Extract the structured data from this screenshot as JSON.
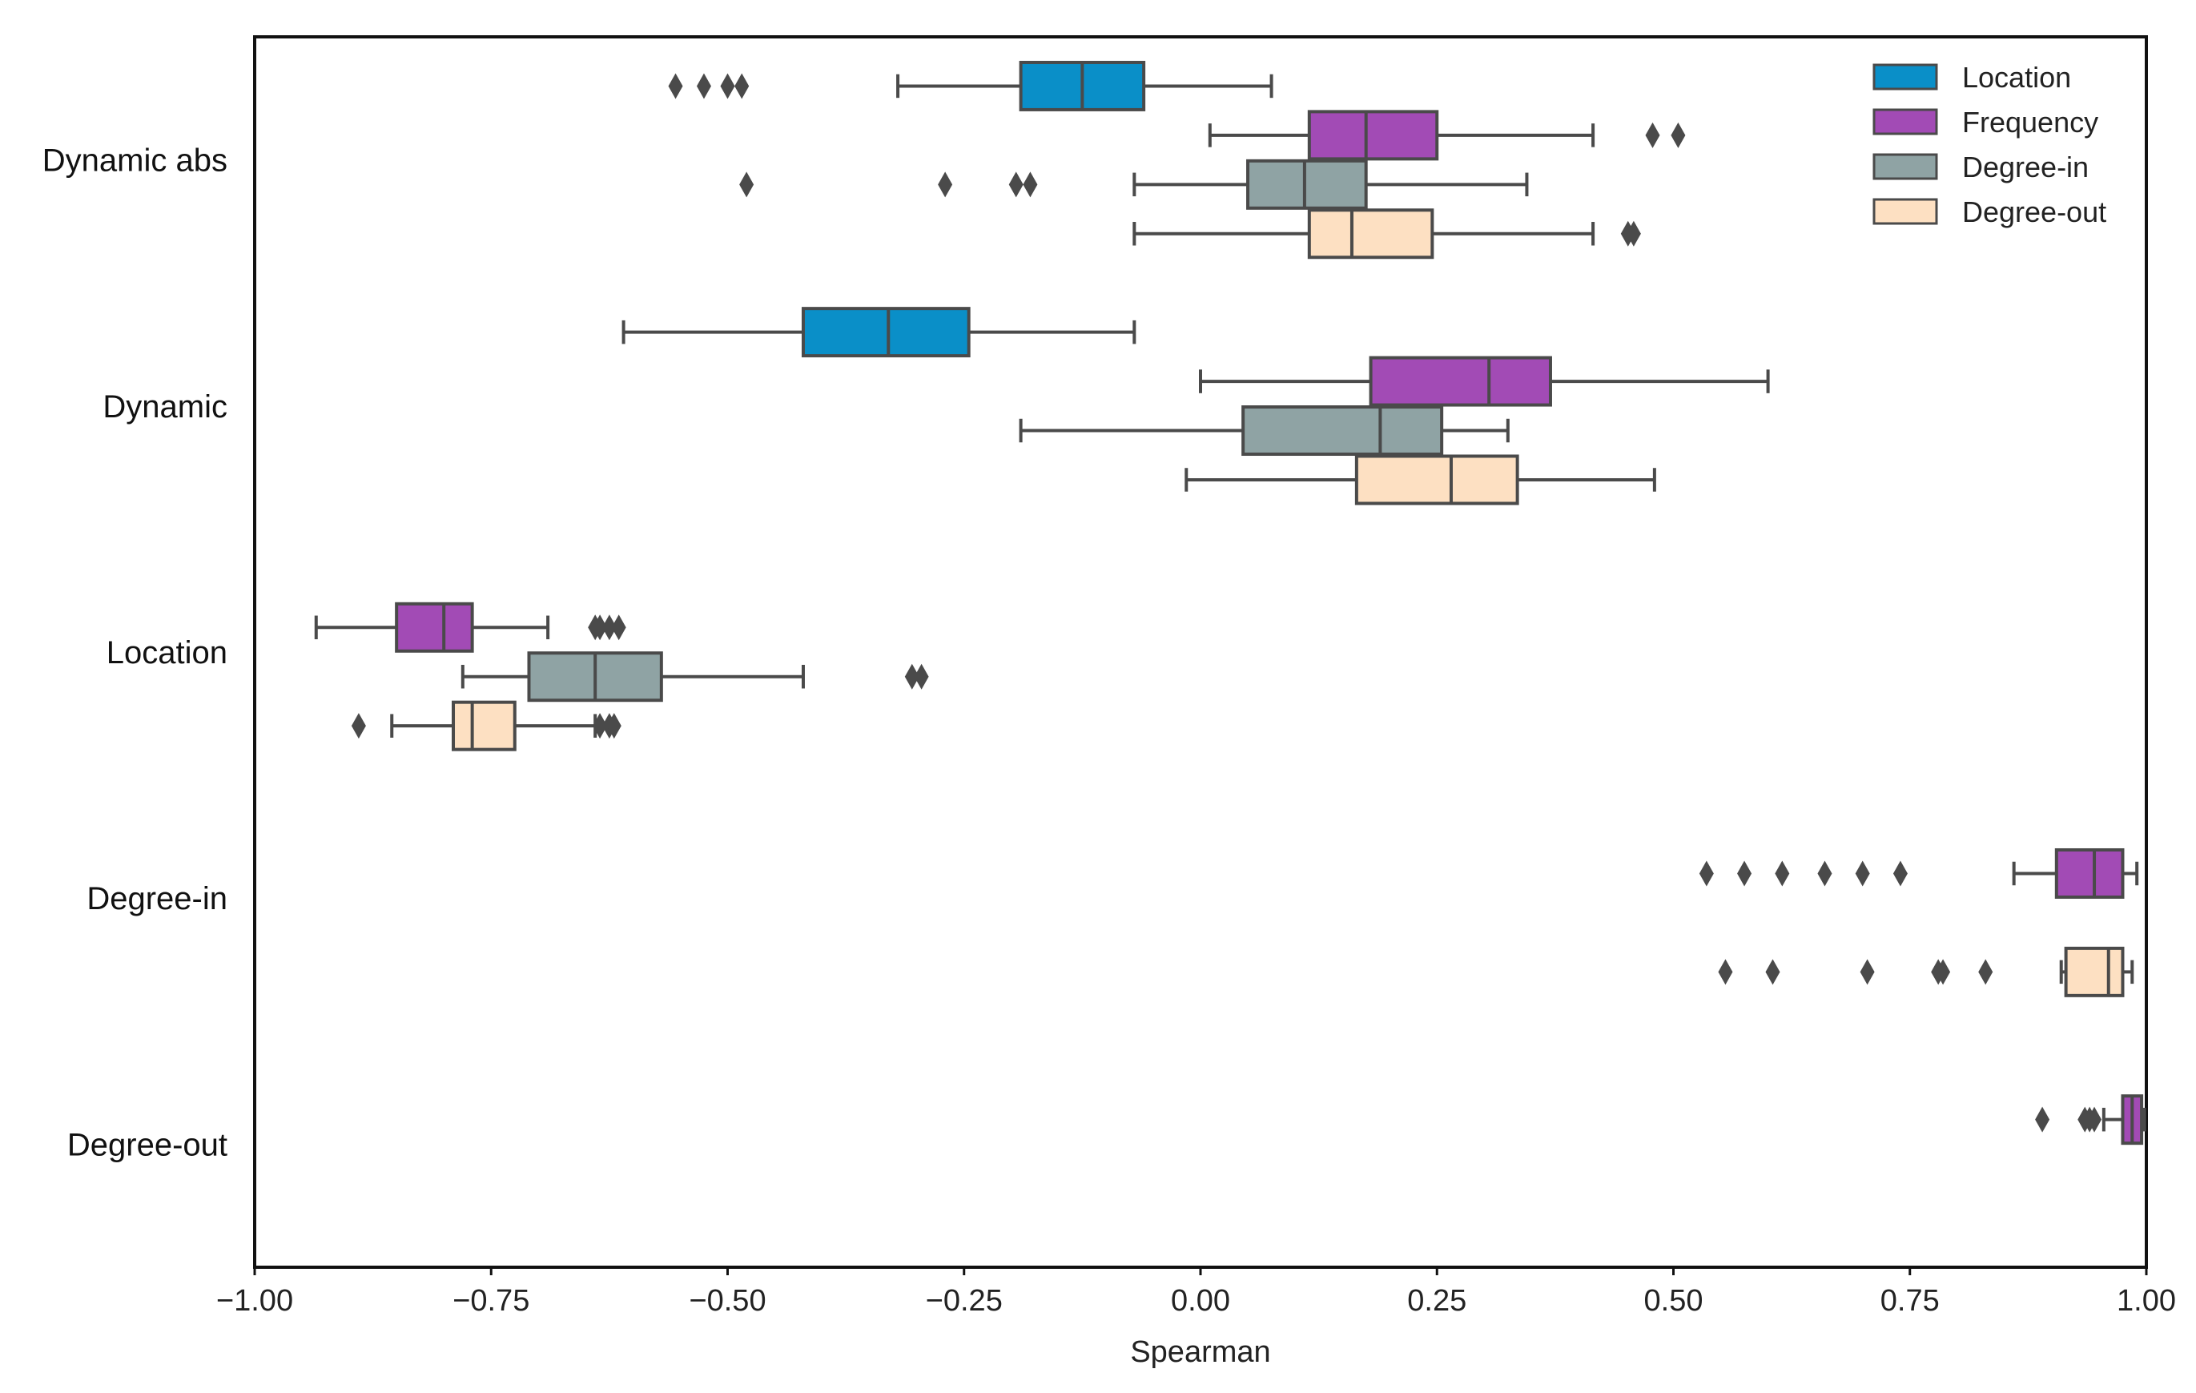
{
  "chart_data": {
    "type": "boxplot",
    "orientation": "horizontal",
    "xlabel": "Spearman",
    "xlim": [
      -1.0,
      1.0
    ],
    "xticks": [
      -1.0,
      -0.75,
      -0.5,
      -0.25,
      0.0,
      0.25,
      0.5,
      0.75,
      1.0
    ],
    "xtick_labels": [
      "−1.00",
      "−0.75",
      "−0.50",
      "−0.25",
      "0.00",
      "0.25",
      "0.50",
      "0.75",
      "1.00"
    ],
    "grid": false,
    "legend_position": "top-right",
    "categories": [
      "Dynamic abs",
      "Dynamic",
      "Location",
      "Degree-in",
      "Degree-out"
    ],
    "hue_order": [
      "Location",
      "Frequency",
      "Degree-in",
      "Degree-out"
    ],
    "colors": {
      "Location": "#0a8fc8",
      "Frequency": "#a24bb5",
      "Degree-in": "#8fa3a4",
      "Degree-out": "#fde0c2",
      "edge": "#4a4a4a"
    },
    "boxes": [
      {
        "category": "Dynamic abs",
        "series": "Location",
        "whislo": -0.32,
        "q1": -0.19,
        "med": -0.125,
        "q3": -0.06,
        "whishi": 0.075,
        "fliers": [
          -0.555,
          -0.525,
          -0.5,
          -0.485
        ]
      },
      {
        "category": "Dynamic abs",
        "series": "Frequency",
        "whislo": 0.01,
        "q1": 0.115,
        "med": 0.175,
        "q3": 0.25,
        "whishi": 0.415,
        "fliers": [
          0.478,
          0.505
        ]
      },
      {
        "category": "Dynamic abs",
        "series": "Degree-in",
        "whislo": -0.07,
        "q1": 0.05,
        "med": 0.11,
        "q3": 0.175,
        "whishi": 0.345,
        "fliers": [
          -0.48,
          -0.27,
          -0.195,
          -0.18
        ]
      },
      {
        "category": "Dynamic abs",
        "series": "Degree-out",
        "whislo": -0.07,
        "q1": 0.115,
        "med": 0.16,
        "q3": 0.245,
        "whishi": 0.415,
        "fliers": [
          0.452,
          0.458
        ]
      },
      {
        "category": "Dynamic",
        "series": "Location",
        "whislo": -0.61,
        "q1": -0.42,
        "med": -0.33,
        "q3": -0.245,
        "whishi": -0.07,
        "fliers": []
      },
      {
        "category": "Dynamic",
        "series": "Frequency",
        "whislo": 0.0,
        "q1": 0.18,
        "med": 0.305,
        "q3": 0.37,
        "whishi": 0.6,
        "fliers": []
      },
      {
        "category": "Dynamic",
        "series": "Degree-in",
        "whislo": -0.19,
        "q1": 0.045,
        "med": 0.19,
        "q3": 0.255,
        "whishi": 0.325,
        "fliers": []
      },
      {
        "category": "Dynamic",
        "series": "Degree-out",
        "whislo": -0.015,
        "q1": 0.165,
        "med": 0.265,
        "q3": 0.335,
        "whishi": 0.48,
        "fliers": []
      },
      {
        "category": "Location",
        "series": "Frequency",
        "whislo": -0.935,
        "q1": -0.85,
        "med": -0.8,
        "q3": -0.77,
        "whishi": -0.69,
        "fliers": [
          -0.64,
          -0.635,
          -0.625,
          -0.615
        ]
      },
      {
        "category": "Location",
        "series": "Degree-in",
        "whislo": -0.78,
        "q1": -0.71,
        "med": -0.64,
        "q3": -0.57,
        "whishi": -0.42,
        "fliers": [
          -0.305,
          -0.295
        ]
      },
      {
        "category": "Location",
        "series": "Degree-out",
        "whislo": -0.855,
        "q1": -0.79,
        "med": -0.77,
        "q3": -0.725,
        "whishi": -0.64,
        "fliers": [
          -0.89,
          -0.635,
          -0.625,
          -0.62
        ]
      },
      {
        "category": "Degree-in",
        "series": "Frequency",
        "whislo": 0.86,
        "q1": 0.905,
        "med": 0.945,
        "q3": 0.975,
        "whishi": 0.99,
        "fliers": [
          0.535,
          0.575,
          0.615,
          0.66,
          0.7,
          0.74
        ]
      },
      {
        "category": "Degree-in",
        "series": "Degree-out",
        "whislo": 0.91,
        "q1": 0.915,
        "med": 0.96,
        "q3": 0.975,
        "whishi": 0.985,
        "fliers": [
          0.555,
          0.605,
          0.705,
          0.78,
          0.785,
          0.83
        ]
      },
      {
        "category": "Degree-out",
        "series": "Frequency",
        "whislo": 0.955,
        "q1": 0.975,
        "med": 0.985,
        "q3": 0.995,
        "whishi": 0.998,
        "fliers": [
          0.89,
          0.935,
          0.94,
          0.945
        ]
      }
    ]
  }
}
